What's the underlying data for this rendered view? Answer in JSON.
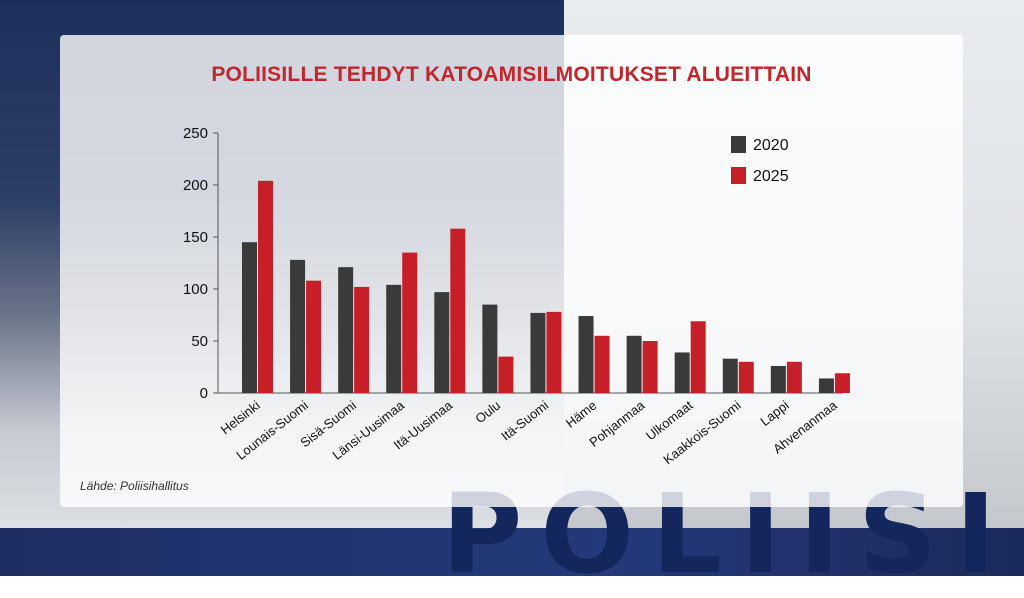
{
  "chart_data": {
    "type": "bar",
    "title": "POLIISILLE TEHDYT KATOAMISILMOITUKSET ALUEITTAIN",
    "categories": [
      "Helsinki",
      "Lounais-Suomi",
      "Sisä-Suomi",
      "Länsi-Uusimaa",
      "Itä-Uusimaa",
      "Oulu",
      "Itä-Suomi",
      "Häme",
      "Pohjanmaa",
      "Ulkomaat",
      "Kaakkois-Suomi",
      "Lappi",
      "Ahvenanmaa"
    ],
    "series": [
      {
        "name": "2020",
        "color": "#3a3a3a",
        "values": [
          145,
          128,
          121,
          104,
          97,
          85,
          77,
          74,
          55,
          39,
          33,
          26,
          14
        ]
      },
      {
        "name": "2025",
        "color": "#c71f27",
        "values": [
          204,
          108,
          102,
          135,
          158,
          35,
          78,
          55,
          50,
          69,
          30,
          30,
          19
        ]
      }
    ],
    "ylim": [
      0,
      250
    ],
    "yticks": [
      0,
      50,
      100,
      150,
      200,
      250
    ],
    "legend_position": "top-right",
    "source": "Lähde: Poliisihallitus"
  }
}
